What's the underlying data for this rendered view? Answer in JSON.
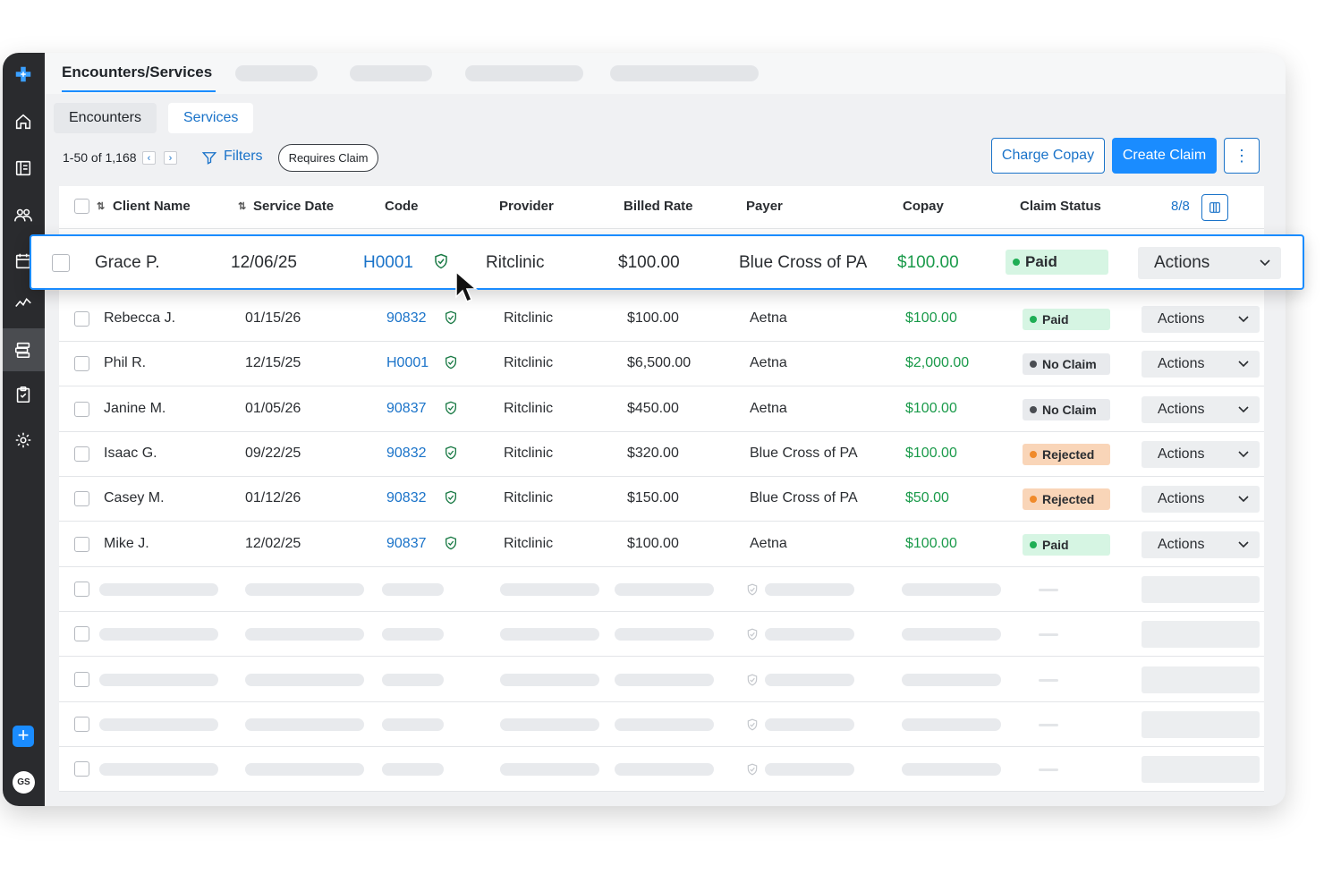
{
  "sidebar": {
    "logo_icon": "plus-logo-icon",
    "items": [
      {
        "name": "home-icon"
      },
      {
        "name": "book-icon"
      },
      {
        "name": "users-icon"
      },
      {
        "name": "calendar-icon"
      },
      {
        "name": "analytics-icon"
      },
      {
        "name": "billing-icon",
        "active": true
      },
      {
        "name": "clipboard-icon"
      },
      {
        "name": "gear-icon"
      }
    ],
    "add_label": "+",
    "avatar_initials": "GS"
  },
  "header": {
    "active_tab": "Encounters/Services"
  },
  "subtabs": [
    {
      "label": "Encounters",
      "active": false
    },
    {
      "label": "Services",
      "active": true
    }
  ],
  "toolbar": {
    "pagination": "1-50 of 1,168",
    "filters_label": "Filters",
    "chip_label": "Requires Claim",
    "charge_copay_label": "Charge Copay",
    "create_claim_label": "Create Claim",
    "columns_count": "8/8"
  },
  "table": {
    "columns": [
      "Client Name",
      "Service Date",
      "Code",
      "Provider",
      "Billed Rate",
      "Payer",
      "Copay",
      "Claim Status"
    ],
    "actions_label": "Actions",
    "highlighted_row": {
      "client": "Grace P.",
      "date": "12/06/25",
      "code": "H0001",
      "provider": "Ritclinic",
      "billed": "$100.00",
      "payer": "Blue Cross of PA",
      "copay": "$100.00",
      "status": "Paid"
    },
    "rows": [
      {
        "client": "Rebecca J.",
        "date": "01/15/26",
        "code": "90832",
        "provider": "Ritclinic",
        "billed": "$100.00",
        "payer": "Aetna",
        "copay": "$100.00",
        "status": "Paid"
      },
      {
        "client": "Phil R.",
        "date": "12/15/25",
        "code": "H0001",
        "provider": "Ritclinic",
        "billed": "$6,500.00",
        "payer": "Aetna",
        "copay": "$2,000.00",
        "status": "No Claim"
      },
      {
        "client": "Janine M.",
        "date": "01/05/26",
        "code": "90837",
        "provider": "Ritclinic",
        "billed": "$450.00",
        "payer": "Aetna",
        "copay": "$100.00",
        "status": "No Claim"
      },
      {
        "client": "Isaac G.",
        "date": "09/22/25",
        "code": "90832",
        "provider": "Ritclinic",
        "billed": "$320.00",
        "payer": "Blue Cross of PA",
        "copay": "$100.00",
        "status": "Rejected"
      },
      {
        "client": "Casey M.",
        "date": "01/12/26",
        "code": "90832",
        "provider": "Ritclinic",
        "billed": "$150.00",
        "payer": "Blue Cross of PA",
        "copay": "$50.00",
        "status": "Rejected"
      },
      {
        "client": "Mike J.",
        "date": "12/02/25",
        "code": "90837",
        "provider": "Ritclinic",
        "billed": "$100.00",
        "payer": "Aetna",
        "copay": "$100.00",
        "status": "Paid"
      }
    ]
  },
  "colors": {
    "accent": "#1a8cff",
    "link": "#1a73c9",
    "copay_green": "#1a9a4a",
    "paid_bg": "#d6f5e3",
    "paid_dot": "#1fae55",
    "noclaim_bg": "#e8eaed",
    "noclaim_dot": "#4a4d52",
    "rejected_bg": "#f9d5b8",
    "rejected_dot": "#f08a2a"
  }
}
